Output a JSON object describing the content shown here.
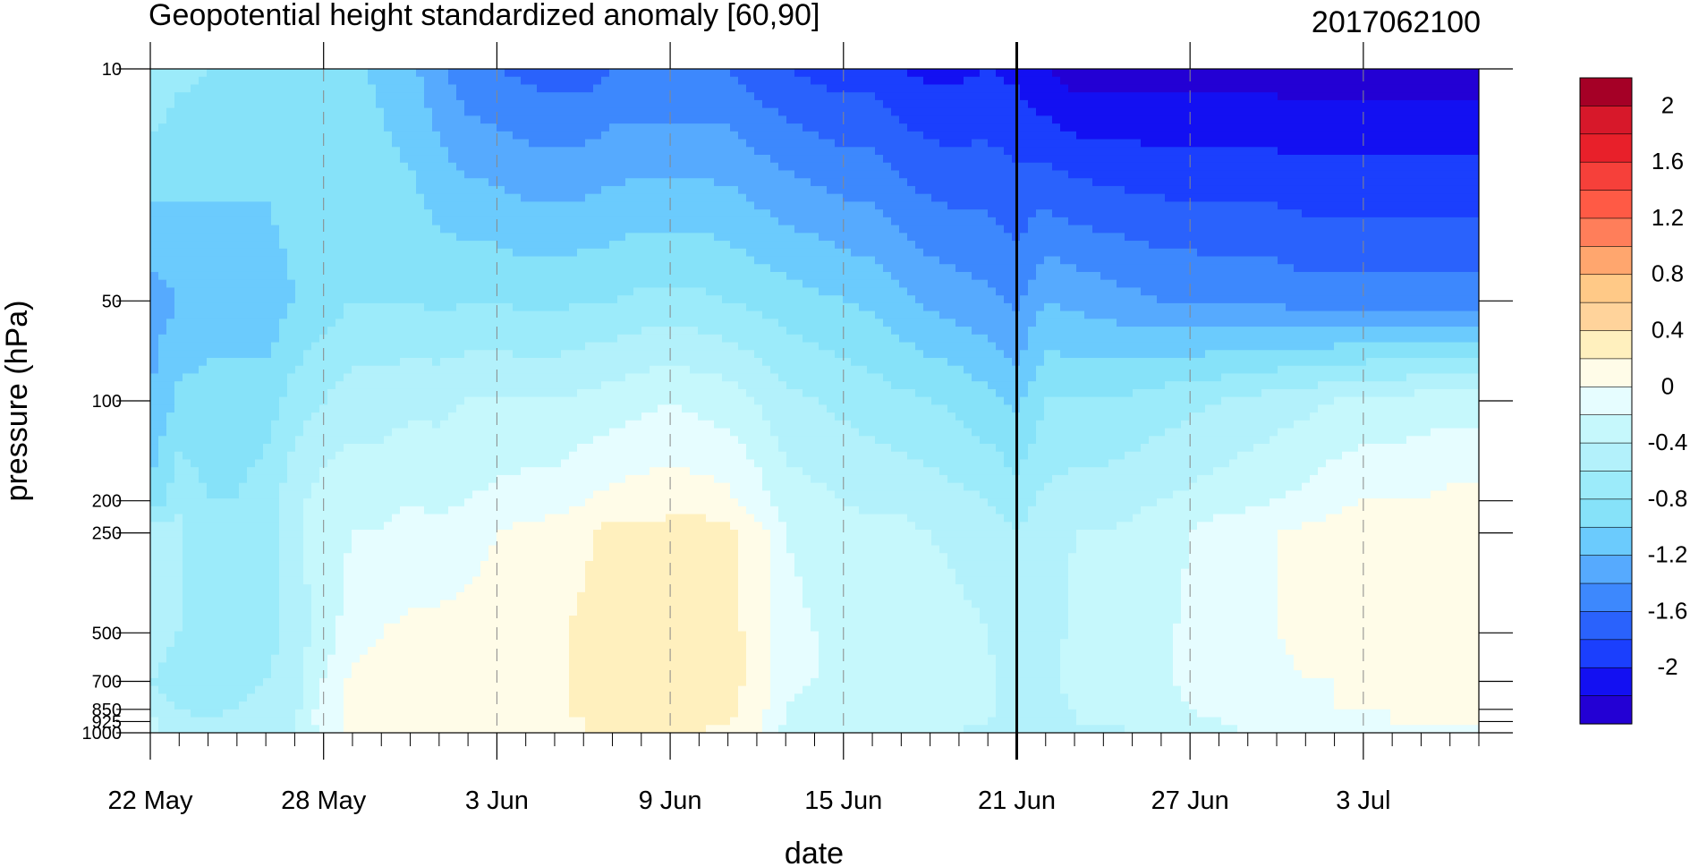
{
  "chart_data": {
    "type": "heatmap",
    "subtype": "filled-contour",
    "title": "Geopotential height standardized anomaly [60,90]",
    "title_right": "2017062100",
    "xlabel": "date",
    "ylabel": "pressure (hPa)",
    "x_tick_labels": [
      "22 May",
      "28 May",
      "3 Jun",
      "9 Jun",
      "15 Jun",
      "21 Jun",
      "27 Jun",
      "3 Jul"
    ],
    "x_range": [
      "2017-05-22",
      "2017-07-07"
    ],
    "y_tick_labels": [
      "10",
      "50",
      "100",
      "200",
      "250",
      "500",
      "700",
      "850",
      "925",
      "1000"
    ],
    "y_scale": "log",
    "y_range": [
      1000,
      10
    ],
    "y_inverted": true,
    "vertical_marker": "21 Jun",
    "colorbar": {
      "labels": [
        "2",
        "1.6",
        "1.2",
        "0.8",
        "0.4",
        "0",
        "-0.4",
        "-0.8",
        "-1.2",
        "-1.6",
        "-2"
      ],
      "levels": [
        -2.2,
        -2.0,
        -1.8,
        -1.6,
        -1.4,
        -1.2,
        -1.0,
        -0.8,
        -0.6,
        -0.4,
        -0.2,
        0.0,
        0.2,
        0.4,
        0.6,
        0.8,
        1.0,
        1.2,
        1.4,
        1.6,
        1.8,
        2.0,
        2.2
      ],
      "colors": [
        "#a50026",
        "#d7182a",
        "#e8202a",
        "#f6403a",
        "#ff5a45",
        "#ff7e5a",
        "#ffa66e",
        "#ffc987",
        "#ffd39b",
        "#fff0be",
        "#fffce8",
        "#e6fdff",
        "#c6f8fc",
        "#b3f1fb",
        "#9cebfa",
        "#86e2f9",
        "#6bcbfd",
        "#56aafe",
        "#3d88fd",
        "#2a62fc",
        "#1b3ffd",
        "#1310f2",
        "#2300d4"
      ]
    },
    "days": [
      0,
      1,
      2,
      3,
      4,
      5,
      6,
      7,
      8,
      9,
      10,
      11,
      12,
      13,
      14,
      15,
      16,
      17,
      18,
      19,
      20,
      21,
      22,
      23,
      24,
      25,
      26,
      27,
      28,
      29,
      30,
      31,
      32,
      33,
      34,
      35,
      36,
      37,
      38,
      39,
      40,
      41,
      42,
      43,
      44,
      45,
      46
    ],
    "pressure_levels": [
      1000,
      925,
      850,
      700,
      500,
      250,
      200,
      100,
      50,
      10
    ],
    "values": [
      [
        -0.3,
        -0.35,
        -0.55,
        -0.6,
        -0.55,
        -0.5,
        -0.95,
        -1.2,
        -1.3,
        -0.6
      ],
      [
        -0.5,
        -0.55,
        -0.6,
        -0.65,
        -0.6,
        -0.55,
        -0.65,
        -0.95,
        -1.2,
        -0.75
      ],
      [
        -0.55,
        -0.55,
        -0.65,
        -0.7,
        -0.75,
        -0.75,
        -0.8,
        -0.9,
        -1.15,
        -0.8
      ],
      [
        -0.6,
        -0.55,
        -0.6,
        -0.65,
        -0.7,
        -0.75,
        -0.8,
        -0.9,
        -1.15,
        -0.8
      ],
      [
        -0.45,
        -0.5,
        -0.55,
        -0.6,
        -0.7,
        -0.7,
        -0.7,
        -0.9,
        -1.15,
        -0.8
      ],
      [
        -0.4,
        -0.4,
        -0.45,
        -0.5,
        -0.5,
        -0.45,
        -0.45,
        -0.7,
        -1.0,
        -0.8
      ],
      [
        -0.2,
        -0.1,
        -0.1,
        -0.2,
        -0.3,
        -0.3,
        -0.3,
        -0.6,
        -0.9,
        -0.85
      ],
      [
        0.05,
        0.05,
        0.05,
        0.05,
        -0.1,
        -0.2,
        -0.25,
        -0.5,
        -0.8,
        -0.95
      ],
      [
        0.1,
        0.1,
        0.1,
        0.1,
        0.0,
        -0.2,
        -0.25,
        -0.5,
        -0.8,
        -1.05
      ],
      [
        0.1,
        0.1,
        0.1,
        0.1,
        0.05,
        -0.15,
        -0.2,
        -0.45,
        -0.8,
        -1.15
      ],
      [
        0.1,
        0.1,
        0.1,
        0.1,
        0.05,
        -0.15,
        -0.25,
        -0.45,
        -0.85,
        -1.35
      ],
      [
        0.1,
        0.1,
        0.1,
        0.1,
        0.1,
        -0.1,
        -0.2,
        -0.4,
        -0.8,
        -1.55
      ],
      [
        0.1,
        0.1,
        0.1,
        0.1,
        0.1,
        0.0,
        -0.15,
        -0.4,
        -0.8,
        -1.6
      ],
      [
        0.1,
        0.1,
        0.1,
        0.1,
        0.1,
        0.05,
        -0.1,
        -0.4,
        -0.85,
        -1.65
      ],
      [
        0.15,
        0.15,
        0.15,
        0.15,
        0.15,
        0.1,
        -0.1,
        -0.4,
        -0.85,
        -1.7
      ],
      [
        0.2,
        0.2,
        0.25,
        0.25,
        0.25,
        0.15,
        0.0,
        -0.35,
        -0.8,
        -1.7
      ],
      [
        0.2,
        0.25,
        0.3,
        0.3,
        0.3,
        0.3,
        0.05,
        -0.3,
        -0.8,
        -1.6
      ],
      [
        0.2,
        0.25,
        0.3,
        0.3,
        0.3,
        0.25,
        0.1,
        -0.25,
        -0.75,
        -1.6
      ],
      [
        0.2,
        0.25,
        0.3,
        0.3,
        0.3,
        0.3,
        0.1,
        -0.2,
        -0.75,
        -1.6
      ],
      [
        0.2,
        0.25,
        0.3,
        0.3,
        0.3,
        0.3,
        0.1,
        -0.25,
        -0.75,
        -1.6
      ],
      [
        0.15,
        0.2,
        0.25,
        0.25,
        0.25,
        0.25,
        0.05,
        -0.3,
        -0.8,
        -1.6
      ],
      [
        0.0,
        0.05,
        0.1,
        0.15,
        0.15,
        0.1,
        -0.1,
        -0.4,
        -0.85,
        -1.7
      ],
      [
        -0.3,
        -0.2,
        -0.2,
        -0.15,
        -0.15,
        -0.2,
        -0.3,
        -0.55,
        -0.9,
        -1.8
      ],
      [
        -0.4,
        -0.3,
        -0.25,
        -0.2,
        -0.2,
        -0.25,
        -0.35,
        -0.6,
        -0.95,
        -1.85
      ],
      [
        -0.4,
        -0.35,
        -0.3,
        -0.3,
        -0.25,
        -0.3,
        -0.4,
        -0.65,
        -1.0,
        -1.9
      ],
      [
        -0.35,
        -0.3,
        -0.3,
        -0.25,
        -0.25,
        -0.35,
        -0.45,
        -0.7,
        -1.05,
        -1.9
      ],
      [
        -0.3,
        -0.25,
        -0.25,
        -0.25,
        -0.25,
        -0.35,
        -0.45,
        -0.75,
        -1.15,
        -2.0
      ],
      [
        -0.3,
        -0.25,
        -0.25,
        -0.25,
        -0.3,
        -0.4,
        -0.5,
        -0.8,
        -1.25,
        -2.05
      ],
      [
        -0.4,
        -0.35,
        -0.35,
        -0.35,
        -0.35,
        -0.45,
        -0.55,
        -0.85,
        -1.3,
        -2.05
      ],
      [
        -0.5,
        -0.4,
        -0.35,
        -0.35,
        -0.4,
        -0.5,
        -0.6,
        -0.95,
        -1.35,
        -2.0
      ],
      [
        -0.6,
        -0.55,
        -0.55,
        -0.5,
        -0.55,
        -0.6,
        -0.7,
        -1.05,
        -1.45,
        -2.05
      ],
      [
        -0.5,
        -0.45,
        -0.45,
        -0.45,
        -0.5,
        -0.5,
        -0.55,
        -0.8,
        -1.2,
        -2.2
      ],
      [
        -0.45,
        -0.4,
        -0.4,
        -0.35,
        -0.35,
        -0.4,
        -0.5,
        -0.8,
        -1.25,
        -2.3
      ],
      [
        -0.45,
        -0.4,
        -0.35,
        -0.35,
        -0.35,
        -0.4,
        -0.5,
        -0.8,
        -1.3,
        -2.3
      ],
      [
        -0.4,
        -0.35,
        -0.35,
        -0.3,
        -0.3,
        -0.35,
        -0.45,
        -0.75,
        -1.35,
        -2.3
      ],
      [
        -0.35,
        -0.3,
        -0.3,
        -0.25,
        -0.25,
        -0.3,
        -0.4,
        -0.7,
        -1.4,
        -2.3
      ],
      [
        -0.3,
        -0.25,
        -0.2,
        -0.15,
        -0.15,
        -0.2,
        -0.35,
        -0.65,
        -1.4,
        -2.3
      ],
      [
        -0.25,
        -0.2,
        -0.15,
        -0.1,
        -0.1,
        -0.1,
        -0.3,
        -0.6,
        -1.45,
        -2.3
      ],
      [
        -0.2,
        -0.15,
        -0.1,
        -0.1,
        -0.05,
        -0.05,
        -0.25,
        -0.55,
        -1.45,
        -2.3
      ],
      [
        -0.15,
        -0.1,
        -0.1,
        -0.05,
        0.0,
        0.0,
        -0.2,
        -0.5,
        -1.45,
        -2.3
      ],
      [
        -0.1,
        -0.1,
        -0.05,
        0.0,
        0.05,
        0.05,
        -0.15,
        -0.45,
        -1.5,
        -2.3
      ],
      [
        -0.1,
        -0.05,
        0.0,
        0.0,
        0.05,
        0.1,
        -0.05,
        -0.4,
        -1.5,
        -2.3
      ],
      [
        -0.1,
        -0.05,
        0.0,
        0.05,
        0.1,
        0.1,
        0.0,
        -0.35,
        -1.5,
        -2.3
      ],
      [
        -0.05,
        0.0,
        0.0,
        0.05,
        0.1,
        0.1,
        0.0,
        -0.35,
        -1.5,
        -2.3
      ],
      [
        -0.05,
        0.0,
        0.0,
        0.05,
        0.1,
        0.1,
        0.0,
        -0.3,
        -1.5,
        -2.3
      ],
      [
        -0.05,
        0.0,
        0.0,
        0.05,
        0.1,
        0.1,
        0.05,
        -0.3,
        -1.5,
        -2.3
      ],
      [
        -0.05,
        0.0,
        0.0,
        0.05,
        0.1,
        0.1,
        0.05,
        -0.3,
        -1.5,
        -2.3
      ]
    ]
  }
}
